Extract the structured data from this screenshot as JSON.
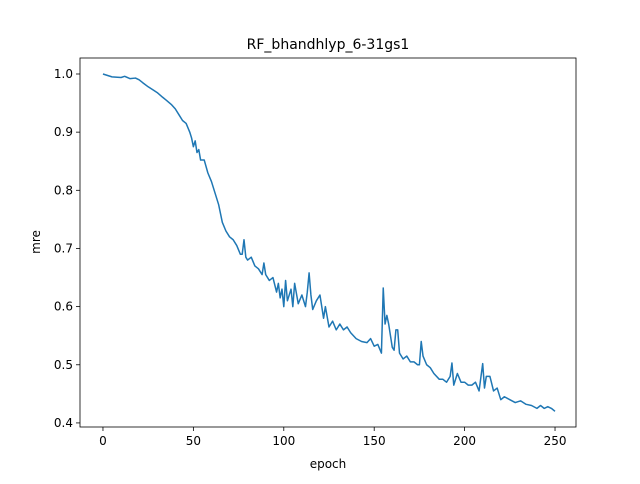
{
  "chart_data": {
    "type": "line",
    "title": "RF_bhandhlyp_6-31gs1",
    "x_label": "epoch",
    "y_label": "mre",
    "x": [
      0,
      5,
      10,
      12,
      15,
      18,
      20,
      22,
      25,
      28,
      30,
      33,
      35,
      38,
      40,
      42,
      44,
      46,
      48,
      49,
      50,
      51,
      52,
      53,
      54,
      56,
      58,
      60,
      62,
      64,
      66,
      68,
      70,
      72,
      74,
      76,
      77,
      78,
      79,
      80,
      82,
      84,
      86,
      88,
      89,
      90,
      92,
      94,
      96,
      97,
      98,
      99,
      100,
      101,
      102,
      104,
      105,
      106,
      108,
      110,
      112,
      113,
      114,
      115,
      116,
      118,
      120,
      122,
      123,
      125,
      127,
      129,
      131,
      133,
      135,
      137,
      140,
      143,
      146,
      148,
      150,
      152,
      154,
      155,
      156,
      157,
      158,
      159,
      160,
      161,
      162,
      163,
      164,
      166,
      168,
      170,
      172,
      174,
      175,
      176,
      177,
      179,
      181,
      183,
      186,
      188,
      190,
      192,
      193,
      194,
      196,
      198,
      200,
      202,
      204,
      206,
      208,
      210,
      211,
      212,
      214,
      216,
      218,
      220,
      222,
      225,
      228,
      231,
      234,
      237,
      240,
      242,
      244,
      246,
      248,
      250
    ],
    "series": [
      {
        "name": "mre",
        "color": "#1f77b4",
        "values": [
          1.0,
          0.995,
          0.994,
          0.996,
          0.992,
          0.993,
          0.99,
          0.985,
          0.978,
          0.972,
          0.968,
          0.96,
          0.955,
          0.947,
          0.94,
          0.93,
          0.92,
          0.915,
          0.9,
          0.89,
          0.875,
          0.885,
          0.865,
          0.87,
          0.852,
          0.852,
          0.83,
          0.815,
          0.795,
          0.775,
          0.745,
          0.73,
          0.72,
          0.715,
          0.705,
          0.69,
          0.69,
          0.715,
          0.685,
          0.68,
          0.685,
          0.67,
          0.665,
          0.655,
          0.675,
          0.655,
          0.645,
          0.65,
          0.625,
          0.64,
          0.615,
          0.63,
          0.6,
          0.645,
          0.61,
          0.63,
          0.6,
          0.64,
          0.605,
          0.62,
          0.6,
          0.625,
          0.658,
          0.62,
          0.595,
          0.61,
          0.62,
          0.58,
          0.6,
          0.565,
          0.575,
          0.56,
          0.57,
          0.56,
          0.565,
          0.555,
          0.545,
          0.54,
          0.538,
          0.545,
          0.532,
          0.535,
          0.52,
          0.632,
          0.57,
          0.585,
          0.57,
          0.55,
          0.53,
          0.525,
          0.56,
          0.56,
          0.52,
          0.51,
          0.515,
          0.505,
          0.505,
          0.5,
          0.5,
          0.54,
          0.515,
          0.5,
          0.495,
          0.485,
          0.475,
          0.475,
          0.47,
          0.48,
          0.503,
          0.465,
          0.485,
          0.47,
          0.47,
          0.465,
          0.465,
          0.47,
          0.455,
          0.502,
          0.46,
          0.48,
          0.48,
          0.455,
          0.46,
          0.44,
          0.445,
          0.44,
          0.435,
          0.438,
          0.432,
          0.43,
          0.425,
          0.43,
          0.425,
          0.428,
          0.425,
          0.42
        ]
      }
    ],
    "xlim": [
      -12.7,
      261.6
    ],
    "ylim": [
      0.393,
      1.0275
    ],
    "xticks": [
      0,
      50,
      100,
      150,
      200,
      250
    ],
    "yticks": [
      0.4,
      0.5,
      0.6,
      0.7,
      0.8,
      0.9,
      {
        "value": 1,
        "label": "1.0"
      }
    ]
  }
}
